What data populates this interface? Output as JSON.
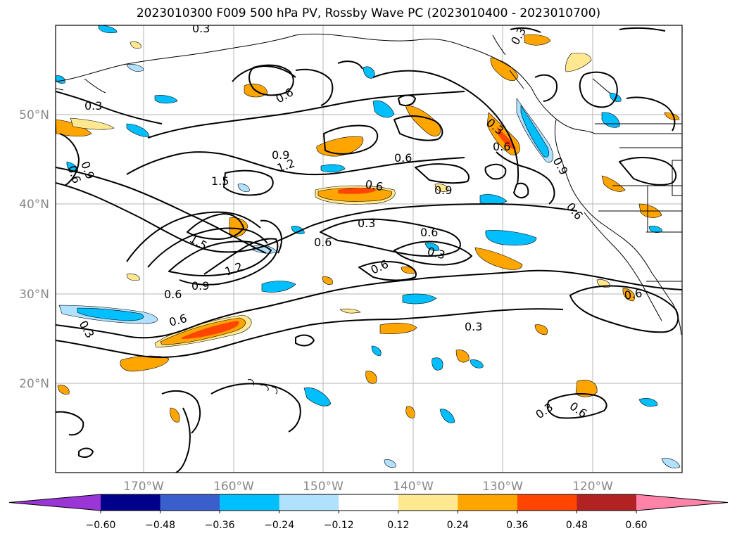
{
  "title": "2023010300 F009 500 hPa PV, Rossby Wave PC (2023010400 - 2023010700)",
  "map": {
    "lat_ticks": [
      "50°N",
      "40°N",
      "30°N",
      "20°N"
    ],
    "lon_ticks": [
      "170°W",
      "160°W",
      "150°W",
      "140°W",
      "130°W",
      "120°W"
    ],
    "contour_labels": [
      "0.3",
      "0.6",
      "0.9",
      "1.2",
      "1.5",
      "0.3",
      "0.6",
      "0.9",
      "0.6",
      "0.3",
      "0.6",
      "0.9",
      "0.6",
      "0.3",
      "0.6",
      "0.6",
      "0.9",
      "0.3",
      "0.6",
      "0.3",
      "0.6",
      "0.3",
      "0.6",
      "0.3",
      "0.6",
      "0.6",
      "0.9",
      "1.2",
      "1.5",
      "0.3",
      "0.6"
    ]
  },
  "colorbar": {
    "colors": [
      "#9a36d6",
      "#00008b",
      "#3a5fcd",
      "#00bfff",
      "#b0e2ff",
      "#ffffff",
      "#ffe88f",
      "#ffa500",
      "#ff4500",
      "#b22222",
      "#ff83a8"
    ],
    "labels": [
      "−0.60",
      "−0.48",
      "−0.36",
      "−0.24",
      "−0.12",
      "0.12",
      "0.24",
      "0.36",
      "0.48",
      "0.60"
    ]
  }
}
